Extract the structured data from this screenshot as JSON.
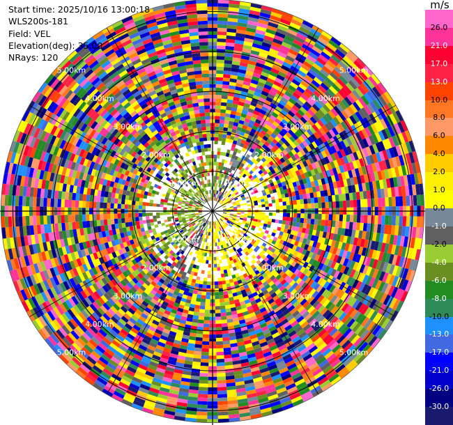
{
  "header": {
    "start_time": "Start time: 2025/10/16 13:00:18",
    "instrument": "WLS200s-181",
    "field": "Field: VEL",
    "elevation": "Elevation(deg): 35.00",
    "nrays": "NRays: 120"
  },
  "colorbar": {
    "unit": "m/s",
    "ticks": [
      "26.0",
      "21.0",
      "17.0",
      "13.0",
      "10.0",
      "8.0",
      "6.0",
      "4.0",
      "2.0",
      "1.0",
      "0.0",
      "-1.0",
      "-2.0",
      "-4.0",
      "-6.0",
      "-8.0",
      "-10.0",
      "-13.0",
      "-17.0",
      "-21.0",
      "-26.0",
      "-30.0"
    ],
    "colors": [
      "#ff66cc",
      "#ff3399",
      "#ff0033",
      "#ff2244",
      "#ff4400",
      "#ff7722",
      "#ff9966",
      "#ff8800",
      "#ffcc00",
      "#ffee00",
      "#ffff00",
      "#778899",
      "#606060",
      "#9acd32",
      "#6b8e23",
      "#228b22",
      "#2e8b57",
      "#1e90ff",
      "#4169e1",
      "#0000ff",
      "#0000cd",
      "#000080",
      "#191970"
    ]
  },
  "chart_data": {
    "type": "ppi",
    "field": "VEL",
    "unit": "m/s",
    "elevation_deg": 35.0,
    "nrays": 120,
    "range_rings_km": [
      1,
      2,
      3,
      4,
      5
    ],
    "ring_labels": [
      "1.00km",
      "2.00km",
      "3.00km",
      "4.00km",
      "5.00km"
    ],
    "max_range_km": 5.3,
    "color_range": [
      -30,
      30
    ]
  }
}
